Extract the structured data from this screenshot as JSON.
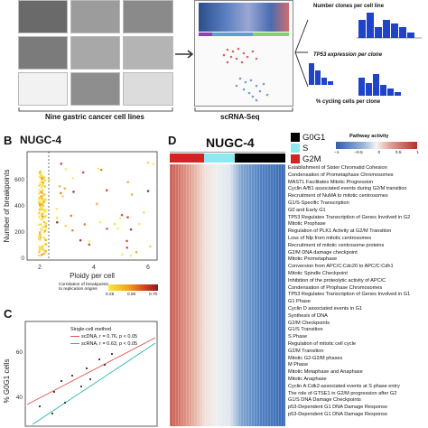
{
  "panelA": {
    "caption_left": "Nine gastric cancer cell lines",
    "caption_mid": "scRNA-Seq",
    "hist1_title": "Number clones per cell line",
    "hist2_title": "TP53 expression per clone",
    "hist3_title": "% cycling cells per clone"
  },
  "panelB": {
    "letter": "B",
    "title": "NUGC-4",
    "xlabel": "Ploidy per cell",
    "ylabel": "Number of breakpoints",
    "xticks": [
      "2",
      "4",
      "6"
    ],
    "yticks": [
      "0",
      "200",
      "400",
      "600"
    ],
    "legend_title": "Correlation of breakpoints\nto replication origins",
    "legend_ticks": [
      "0.25",
      "0.50",
      "0.70"
    ]
  },
  "panelC": {
    "letter": "C",
    "ylabel": "% G0G1 cells",
    "legend_title": "Single-cell method",
    "legend_items": [
      {
        "label": "scDNA, r = 0.76, p < 0.05",
        "color": "#e0524d"
      },
      {
        "label": "scRNA, r = 0.63, p < 0.05",
        "color": "#2bb3b0"
      }
    ],
    "yticks": [
      "40",
      "60"
    ]
  },
  "panelD": {
    "letter": "D",
    "title": "NUGC-4",
    "phase_legend": [
      {
        "label": "G0G1",
        "color": "#000000"
      },
      {
        "label": "S",
        "color": "#8ee8f0"
      },
      {
        "label": "G2M",
        "color": "#d62222"
      }
    ],
    "activity_title": "Pathway activity",
    "activity_ticks": [
      "−1",
      "−0.5",
      "0",
      "0.5",
      "1"
    ],
    "pathways": [
      "Establishment of Sister Chromatid Cohesion",
      "Condensation of Prometaphase Chromosomes",
      "MASTL Facilitates Mitotic Progression",
      "Cyclin A/B1 associated events during G2/M transition",
      "Recruitment of NuMA to mitotic centrosomes",
      "G1/S-Specific Transcription",
      "G0 and Early G1",
      "TP53 Regulates Transcription of Genes Involved in G2",
      "Mitotic Prophase",
      "Regulation of PLK1 Activity at G2/M Transition",
      "Loss of Nlp from mitotic centrosomes",
      "Recruitment of mitotic centrosome proteins",
      "G2/M DNA damage checkpoint",
      "Mitotic Prometaphase",
      "Conversion from APC/C:Cdc20 to APC/C:Cdh1",
      "Mitotic Spindle Checkpoint",
      "Inhibition of the proteolytic activity of APC/C",
      "Condensation of Prophase Chromosomes",
      "TP53 Regulates Transcription of Genes Involved in G1",
      "G1 Phase",
      "Cyclin D associated events in G1",
      "Synthesis of DNA",
      "G2/M Checkpoints",
      "G1/S Transition",
      "S Phase",
      "Regulation of mitotic cell cycle",
      "G2/M Transition",
      "Mitotic G2-G2/M phases",
      "M Phase",
      "Mitotic Metaphase and Anaphase",
      "Mitotic Anaphase",
      "Cyclin A:Cdk2-associated events at S phase entry",
      "The role of GTSE1 in G2/M progression after G2",
      "G1/S DNA Damage Checkpoints",
      "p53-Dependent G1 DNA Damage Response",
      "p53-Dependent G1 DNA Damage Response"
    ]
  },
  "colors": {
    "heat_blue": "#3a6fb5",
    "heat_red": "#c64a3c",
    "g0g1": "#000000",
    "s": "#8ee8f0",
    "g2m": "#d62222"
  }
}
